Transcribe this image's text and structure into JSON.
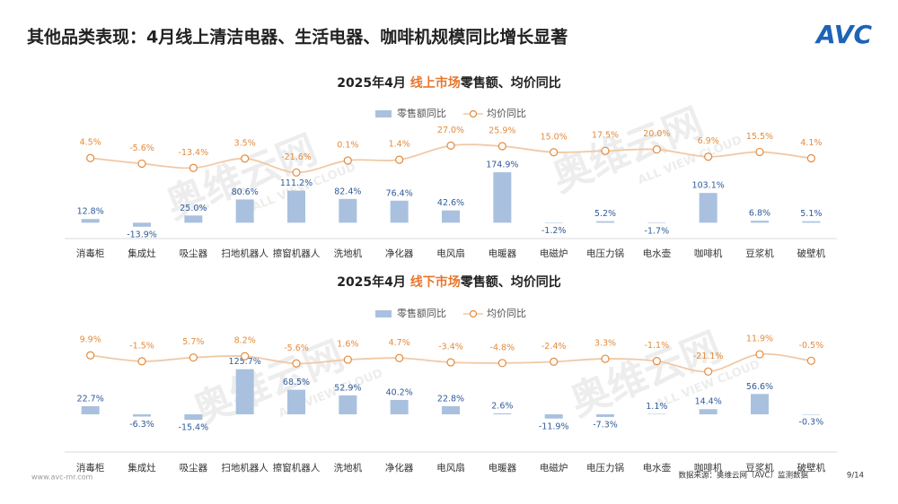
{
  "header": {
    "title": "其他品类表现：4月线上清洁电器、生活电器、咖啡机规模同比增长显著",
    "logo": "AVC"
  },
  "watermark": [
    "奥维云网",
    "ALL VIEW CLOUD"
  ],
  "chart_data": [
    {
      "type": "combo",
      "title": [
        "2025年4月 ",
        "线上市场",
        "零售额、均价同比"
      ],
      "legend": "top",
      "categories": [
        "消毒柜",
        "集成灶",
        "吸尘器",
        "扫地机器人",
        "擦窗机器人",
        "洗地机",
        "净化器",
        "电风扇",
        "电暖器",
        "电磁炉",
        "电压力锅",
        "电水壶",
        "咖啡机",
        "豆浆机",
        "破壁机"
      ],
      "ylim": [
        -30,
        200
      ],
      "y2lim": [
        -60,
        60
      ],
      "series": [
        {
          "name": "零售额同比",
          "kind": "bar",
          "color": "#a9c1de",
          "label_color": "#2f5b9a",
          "values": [
            12.8,
            -13.9,
            25.0,
            80.6,
            111.2,
            82.4,
            76.4,
            42.6,
            174.9,
            -1.2,
            5.2,
            -1.7,
            103.1,
            6.8,
            5.1
          ],
          "value_labels": [
            "12.8%",
            "-13.9%",
            "25.0%",
            "80.6%",
            "111.2%",
            "82.4%",
            "76.4%",
            "42.6%",
            "174.9%",
            "-1.2%",
            "5.2%",
            "-1.7%",
            "103.1%",
            "6.8%",
            "5.1%"
          ]
        },
        {
          "name": "均价同比",
          "kind": "line",
          "axis": "y2",
          "color": "#f0c9a6",
          "label_color": "#e38b3d",
          "values": [
            4.5,
            -5.6,
            -13.4,
            3.5,
            -21.6,
            0.1,
            1.4,
            27.0,
            25.9,
            15.0,
            17.5,
            20.0,
            6.9,
            15.5,
            4.1
          ],
          "value_labels": [
            "4.5%",
            "-5.6%",
            "-13.4%",
            "3.5%",
            "-21.6%",
            "0.1%",
            "1.4%",
            "27.0%",
            "25.9%",
            "15.0%",
            "17.5%",
            "20.0%",
            "6.9%",
            "15.5%",
            "4.1%"
          ]
        }
      ]
    },
    {
      "type": "combo",
      "title": [
        "2025年4月 ",
        "线下市场",
        "零售额、均价同比"
      ],
      "legend": "top",
      "categories": [
        "消毒柜",
        "集成灶",
        "吸尘器",
        "扫地机器人",
        "擦窗机器人",
        "洗地机",
        "净化器",
        "电风扇",
        "电暖器",
        "电磁炉",
        "电压力锅",
        "电水壶",
        "咖啡机",
        "豆浆机",
        "破壁机"
      ],
      "ylim": [
        -30,
        150
      ],
      "y2lim": [
        -60,
        60
      ],
      "series": [
        {
          "name": "零售额同比",
          "kind": "bar",
          "color": "#a9c1de",
          "label_color": "#2f5b9a",
          "values": [
            22.7,
            -6.3,
            -15.4,
            125.7,
            68.5,
            52.9,
            40.2,
            22.8,
            2.6,
            -11.9,
            -7.3,
            1.1,
            14.4,
            56.6,
            -0.3
          ],
          "value_labels": [
            "22.7%",
            "-6.3%",
            "-15.4%",
            "125.7%",
            "68.5%",
            "52.9%",
            "40.2%",
            "22.8%",
            "2.6%",
            "-11.9%",
            "-7.3%",
            "1.1%",
            "14.4%",
            "56.6%",
            "-0.3%"
          ]
        },
        {
          "name": "均价同比",
          "kind": "line",
          "axis": "y2",
          "color": "#f0c9a6",
          "label_color": "#e38b3d",
          "values": [
            9.9,
            -1.5,
            5.7,
            8.2,
            -5.6,
            1.6,
            4.7,
            -3.4,
            -4.8,
            -2.4,
            3.3,
            -1.1,
            -21.1,
            11.9,
            -0.5
          ],
          "value_labels": [
            "9.9%",
            "-1.5%",
            "5.7%",
            "8.2%",
            "-5.6%",
            "1.6%",
            "4.7%",
            "-3.4%",
            "-4.8%",
            "-2.4%",
            "3.3%",
            "-1.1%",
            "-21.1%",
            "11.9%",
            "-0.5%"
          ]
        }
      ]
    }
  ],
  "footer": {
    "website": "www.avc-mr.com",
    "source": "数据来源：奥维云网（AVC）监测数据",
    "page": "9/14"
  }
}
